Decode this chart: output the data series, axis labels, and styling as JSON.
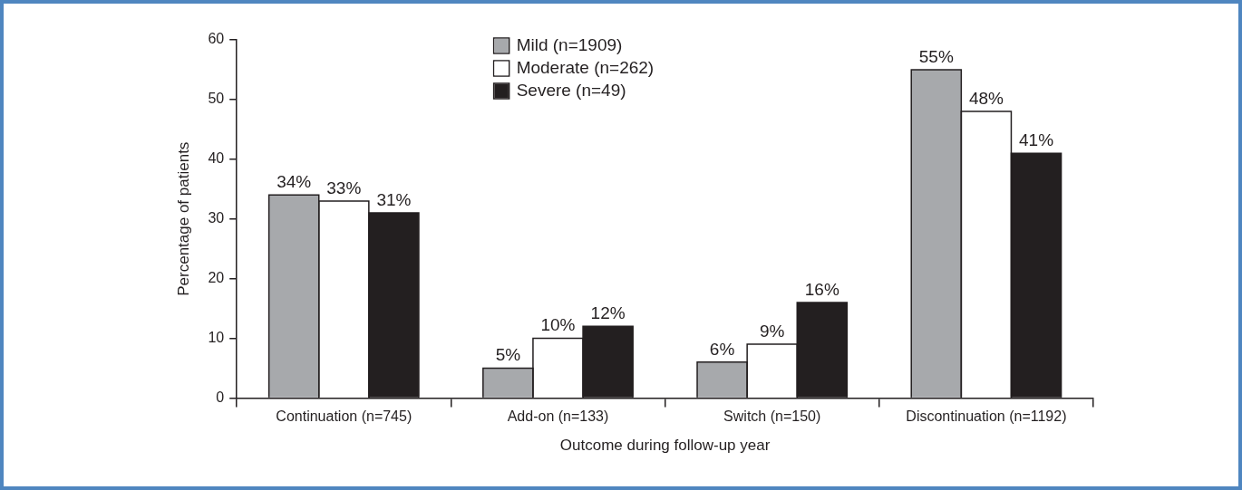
{
  "chart_data": {
    "type": "bar",
    "xlabel": "Outcome during follow-up year",
    "ylabel": "Percentage of patients",
    "categories": [
      "Continuation (n=745)",
      "Add-on (n=133)",
      "Switch (n=150)",
      "Discontinuation (n=1192)"
    ],
    "series": [
      {
        "name": "Mild (n=1909)",
        "color": "#a7a9ac",
        "values": [
          34,
          5,
          6,
          55
        ],
        "value_labels": [
          "34%",
          "5%",
          "6%",
          "55%"
        ]
      },
      {
        "name": "Moderate (n=262)",
        "color": "#ffffff",
        "values": [
          33,
          10,
          9,
          48
        ],
        "value_labels": [
          "33%",
          "10%",
          "9%",
          "48%"
        ]
      },
      {
        "name": "Severe (n=49)",
        "color": "#231f20",
        "values": [
          31,
          12,
          16,
          41
        ],
        "value_labels": [
          "31%",
          "12%",
          "16%",
          "41%"
        ]
      }
    ],
    "ylim": [
      0,
      60
    ],
    "yticks": [
      0,
      10,
      20,
      30,
      40,
      50,
      60
    ],
    "grid": false,
    "legend": "top"
  }
}
